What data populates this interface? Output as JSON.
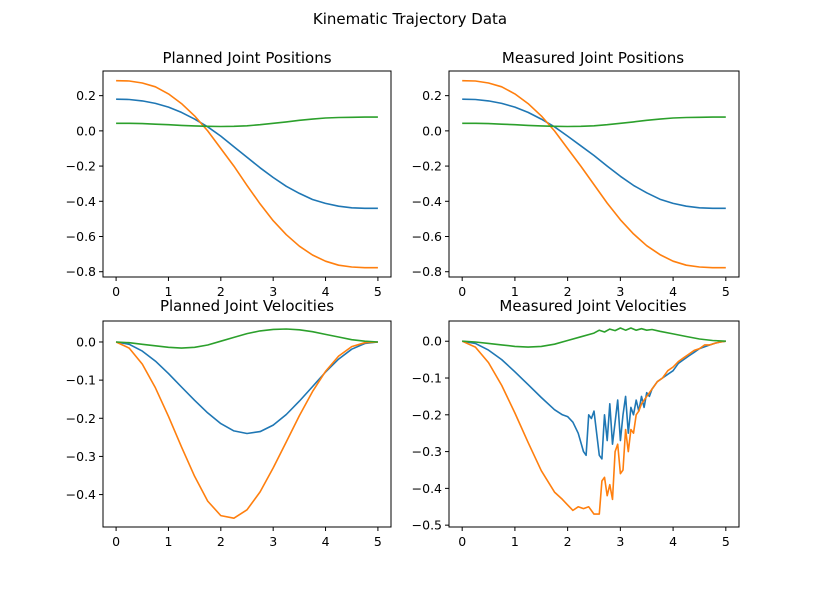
{
  "figure_title": "Kinematic Trajectory Data",
  "colors": {
    "s1": "#1f77b4",
    "s2": "#ff7f0e",
    "s3": "#2ca02c"
  },
  "chart_data": [
    {
      "type": "line",
      "title": "Planned Joint Positions",
      "xlim": [
        -0.25,
        5.25
      ],
      "ylim": [
        -0.83,
        0.34
      ],
      "xticks": [
        0,
        1,
        2,
        3,
        4,
        5
      ],
      "yticks": [
        -0.8,
        -0.6,
        -0.4,
        -0.2,
        0.0,
        0.2
      ],
      "xlabel": "",
      "ylabel": "",
      "series": [
        {
          "x": [
            0,
            0.25,
            0.5,
            0.75,
            1,
            1.25,
            1.5,
            1.75,
            2,
            2.25,
            2.5,
            2.75,
            3,
            3.25,
            3.5,
            3.75,
            4,
            4.25,
            4.5,
            4.75,
            5
          ],
          "y": [
            0.18,
            0.178,
            0.17,
            0.156,
            0.135,
            0.105,
            0.067,
            0.023,
            -0.03,
            -0.09,
            -0.15,
            -0.21,
            -0.265,
            -0.315,
            -0.355,
            -0.39,
            -0.412,
            -0.428,
            -0.437,
            -0.44,
            -0.44
          ],
          "color": "#1f77b4"
        },
        {
          "x": [
            0,
            0.25,
            0.5,
            0.75,
            1,
            1.25,
            1.5,
            1.75,
            2,
            2.25,
            2.5,
            2.75,
            3,
            3.25,
            3.5,
            3.75,
            4,
            4.25,
            4.5,
            4.75,
            5
          ],
          "y": [
            0.285,
            0.283,
            0.272,
            0.25,
            0.21,
            0.155,
            0.085,
            0.0,
            -0.1,
            -0.2,
            -0.31,
            -0.415,
            -0.51,
            -0.59,
            -0.655,
            -0.705,
            -0.74,
            -0.763,
            -0.773,
            -0.777,
            -0.777
          ],
          "color": "#ff7f0e"
        },
        {
          "x": [
            0,
            0.25,
            0.5,
            0.75,
            1,
            1.25,
            1.5,
            1.75,
            2,
            2.25,
            2.5,
            2.75,
            3,
            3.25,
            3.5,
            3.75,
            4,
            4.25,
            4.5,
            4.75,
            5
          ],
          "y": [
            0.043,
            0.043,
            0.041,
            0.038,
            0.035,
            0.031,
            0.028,
            0.026,
            0.025,
            0.026,
            0.029,
            0.035,
            0.043,
            0.051,
            0.06,
            0.067,
            0.073,
            0.076,
            0.077,
            0.078,
            0.078
          ],
          "color": "#2ca02c"
        }
      ]
    },
    {
      "type": "line",
      "title": "Measured Joint Positions",
      "xlim": [
        -0.25,
        5.25
      ],
      "ylim": [
        -0.83,
        0.34
      ],
      "xticks": [
        0,
        1,
        2,
        3,
        4,
        5
      ],
      "yticks": [
        -0.8,
        -0.6,
        -0.4,
        -0.2,
        0.0,
        0.2
      ],
      "xlabel": "",
      "ylabel": "",
      "series": [
        {
          "x": [
            0,
            0.25,
            0.5,
            0.75,
            1,
            1.25,
            1.5,
            1.75,
            2,
            2.25,
            2.5,
            2.75,
            3,
            3.25,
            3.5,
            3.75,
            4,
            4.25,
            4.5,
            4.75,
            5
          ],
          "y": [
            0.18,
            0.178,
            0.17,
            0.156,
            0.135,
            0.105,
            0.067,
            0.023,
            -0.03,
            -0.085,
            -0.14,
            -0.2,
            -0.258,
            -0.31,
            -0.352,
            -0.388,
            -0.412,
            -0.428,
            -0.437,
            -0.44,
            -0.44
          ],
          "color": "#1f77b4"
        },
        {
          "x": [
            0,
            0.25,
            0.5,
            0.75,
            1,
            1.25,
            1.5,
            1.75,
            2,
            2.25,
            2.5,
            2.75,
            3,
            3.25,
            3.5,
            3.75,
            4,
            4.25,
            4.5,
            4.75,
            5
          ],
          "y": [
            0.285,
            0.283,
            0.272,
            0.25,
            0.21,
            0.155,
            0.085,
            0.0,
            -0.1,
            -0.2,
            -0.305,
            -0.41,
            -0.505,
            -0.585,
            -0.652,
            -0.703,
            -0.74,
            -0.763,
            -0.773,
            -0.777,
            -0.777
          ],
          "color": "#ff7f0e"
        },
        {
          "x": [
            0,
            0.25,
            0.5,
            0.75,
            1,
            1.25,
            1.5,
            1.75,
            2,
            2.25,
            2.5,
            2.75,
            3,
            3.25,
            3.5,
            3.75,
            4,
            4.25,
            4.5,
            4.75,
            5
          ],
          "y": [
            0.043,
            0.043,
            0.041,
            0.038,
            0.035,
            0.031,
            0.028,
            0.026,
            0.025,
            0.026,
            0.029,
            0.035,
            0.043,
            0.051,
            0.06,
            0.067,
            0.073,
            0.076,
            0.077,
            0.078,
            0.078
          ],
          "color": "#2ca02c"
        }
      ]
    },
    {
      "type": "line",
      "title": "Planned Joint Velocities",
      "xlim": [
        -0.25,
        5.25
      ],
      "ylim": [
        -0.485,
        0.055
      ],
      "xticks": [
        0,
        1,
        2,
        3,
        4,
        5
      ],
      "yticks": [
        -0.4,
        -0.3,
        -0.2,
        -0.1,
        0.0
      ],
      "xlabel": "",
      "ylabel": "",
      "series": [
        {
          "x": [
            0,
            0.25,
            0.5,
            0.75,
            1,
            1.25,
            1.5,
            1.75,
            2,
            2.25,
            2.5,
            2.75,
            3,
            3.25,
            3.5,
            3.75,
            4,
            4.25,
            4.5,
            4.75,
            5
          ],
          "y": [
            0,
            -0.006,
            -0.024,
            -0.05,
            -0.083,
            -0.118,
            -0.153,
            -0.186,
            -0.214,
            -0.233,
            -0.24,
            -0.235,
            -0.218,
            -0.19,
            -0.155,
            -0.117,
            -0.079,
            -0.045,
            -0.019,
            -0.004,
            0
          ],
          "color": "#1f77b4"
        },
        {
          "x": [
            0,
            0.25,
            0.5,
            0.75,
            1,
            1.25,
            1.5,
            1.75,
            2,
            2.25,
            2.5,
            2.75,
            3,
            3.25,
            3.5,
            3.75,
            4,
            4.25,
            4.5,
            4.75,
            5
          ],
          "y": [
            0,
            -0.016,
            -0.058,
            -0.12,
            -0.195,
            -0.275,
            -0.352,
            -0.417,
            -0.455,
            -0.462,
            -0.44,
            -0.393,
            -0.33,
            -0.262,
            -0.193,
            -0.13,
            -0.077,
            -0.037,
            -0.012,
            -0.002,
            0
          ],
          "color": "#ff7f0e"
        },
        {
          "x": [
            0,
            0.25,
            0.5,
            0.75,
            1,
            1.25,
            1.5,
            1.75,
            2,
            2.25,
            2.5,
            2.75,
            3,
            3.25,
            3.5,
            3.75,
            4,
            4.25,
            4.5,
            4.75,
            5
          ],
          "y": [
            0,
            -0.002,
            -0.006,
            -0.01,
            -0.014,
            -0.016,
            -0.014,
            -0.008,
            0.002,
            0.012,
            0.022,
            0.029,
            0.033,
            0.034,
            0.032,
            0.027,
            0.02,
            0.013,
            0.006,
            0.002,
            0
          ],
          "color": "#2ca02c"
        }
      ]
    },
    {
      "type": "line",
      "title": "Measured Joint Velocities",
      "xlim": [
        -0.25,
        5.25
      ],
      "ylim": [
        -0.505,
        0.055
      ],
      "xticks": [
        0,
        1,
        2,
        3,
        4,
        5
      ],
      "yticks": [
        -0.5,
        -0.4,
        -0.3,
        -0.2,
        -0.1,
        0.0
      ],
      "xlabel": "",
      "ylabel": "",
      "series": [
        {
          "x": [
            0,
            0.25,
            0.5,
            0.75,
            1,
            1.25,
            1.5,
            1.75,
            1.9,
            2.0,
            2.1,
            2.2,
            2.3,
            2.35,
            2.4,
            2.45,
            2.5,
            2.6,
            2.65,
            2.7,
            2.75,
            2.8,
            2.85,
            2.9,
            2.95,
            3.0,
            3.05,
            3.1,
            3.15,
            3.2,
            3.25,
            3.3,
            3.35,
            3.4,
            3.45,
            3.5,
            3.55,
            3.6,
            3.7,
            3.8,
            3.9,
            4.0,
            4.1,
            4.2,
            4.3,
            4.4,
            4.5,
            4.6,
            4.7,
            4.8,
            4.9,
            5
          ],
          "y": [
            0,
            -0.006,
            -0.024,
            -0.05,
            -0.083,
            -0.118,
            -0.153,
            -0.186,
            -0.2,
            -0.205,
            -0.22,
            -0.25,
            -0.3,
            -0.31,
            -0.2,
            -0.21,
            -0.19,
            -0.31,
            -0.32,
            -0.2,
            -0.27,
            -0.17,
            -0.28,
            -0.22,
            -0.16,
            -0.27,
            -0.2,
            -0.15,
            -0.25,
            -0.18,
            -0.2,
            -0.16,
            -0.19,
            -0.15,
            -0.18,
            -0.14,
            -0.15,
            -0.13,
            -0.11,
            -0.1,
            -0.09,
            -0.08,
            -0.06,
            -0.05,
            -0.04,
            -0.03,
            -0.02,
            -0.015,
            -0.01,
            -0.005,
            -0.002,
            0
          ],
          "color": "#1f77b4"
        },
        {
          "x": [
            0,
            0.25,
            0.5,
            0.75,
            1,
            1.25,
            1.5,
            1.75,
            1.9,
            2.0,
            2.1,
            2.2,
            2.3,
            2.4,
            2.5,
            2.55,
            2.6,
            2.65,
            2.7,
            2.75,
            2.8,
            2.85,
            2.9,
            2.95,
            3.0,
            3.05,
            3.1,
            3.15,
            3.2,
            3.25,
            3.3,
            3.35,
            3.4,
            3.5,
            3.6,
            3.7,
            3.8,
            3.9,
            4.0,
            4.1,
            4.2,
            4.3,
            4.4,
            4.5,
            4.6,
            4.7,
            4.8,
            4.9,
            5
          ],
          "y": [
            0,
            -0.016,
            -0.058,
            -0.12,
            -0.195,
            -0.275,
            -0.352,
            -0.41,
            -0.43,
            -0.445,
            -0.46,
            -0.45,
            -0.455,
            -0.45,
            -0.47,
            -0.47,
            -0.47,
            -0.38,
            -0.37,
            -0.42,
            -0.39,
            -0.43,
            -0.3,
            -0.28,
            -0.36,
            -0.35,
            -0.24,
            -0.3,
            -0.24,
            -0.25,
            -0.2,
            -0.19,
            -0.17,
            -0.15,
            -0.13,
            -0.11,
            -0.1,
            -0.08,
            -0.07,
            -0.055,
            -0.045,
            -0.035,
            -0.025,
            -0.02,
            -0.01,
            -0.01,
            -0.005,
            -0.002,
            0
          ],
          "color": "#ff7f0e"
        },
        {
          "x": [
            0,
            0.25,
            0.5,
            0.75,
            1,
            1.25,
            1.5,
            1.75,
            2,
            2.25,
            2.5,
            2.6,
            2.7,
            2.8,
            2.9,
            3.0,
            3.1,
            3.2,
            3.3,
            3.4,
            3.5,
            3.6,
            3.75,
            4,
            4.25,
            4.5,
            4.75,
            5
          ],
          "y": [
            0,
            -0.002,
            -0.006,
            -0.01,
            -0.014,
            -0.016,
            -0.014,
            -0.008,
            0.002,
            0.012,
            0.022,
            0.03,
            0.025,
            0.033,
            0.029,
            0.036,
            0.03,
            0.036,
            0.03,
            0.034,
            0.03,
            0.032,
            0.027,
            0.02,
            0.013,
            0.006,
            0.002,
            0
          ],
          "color": "#2ca02c"
        }
      ]
    }
  ]
}
